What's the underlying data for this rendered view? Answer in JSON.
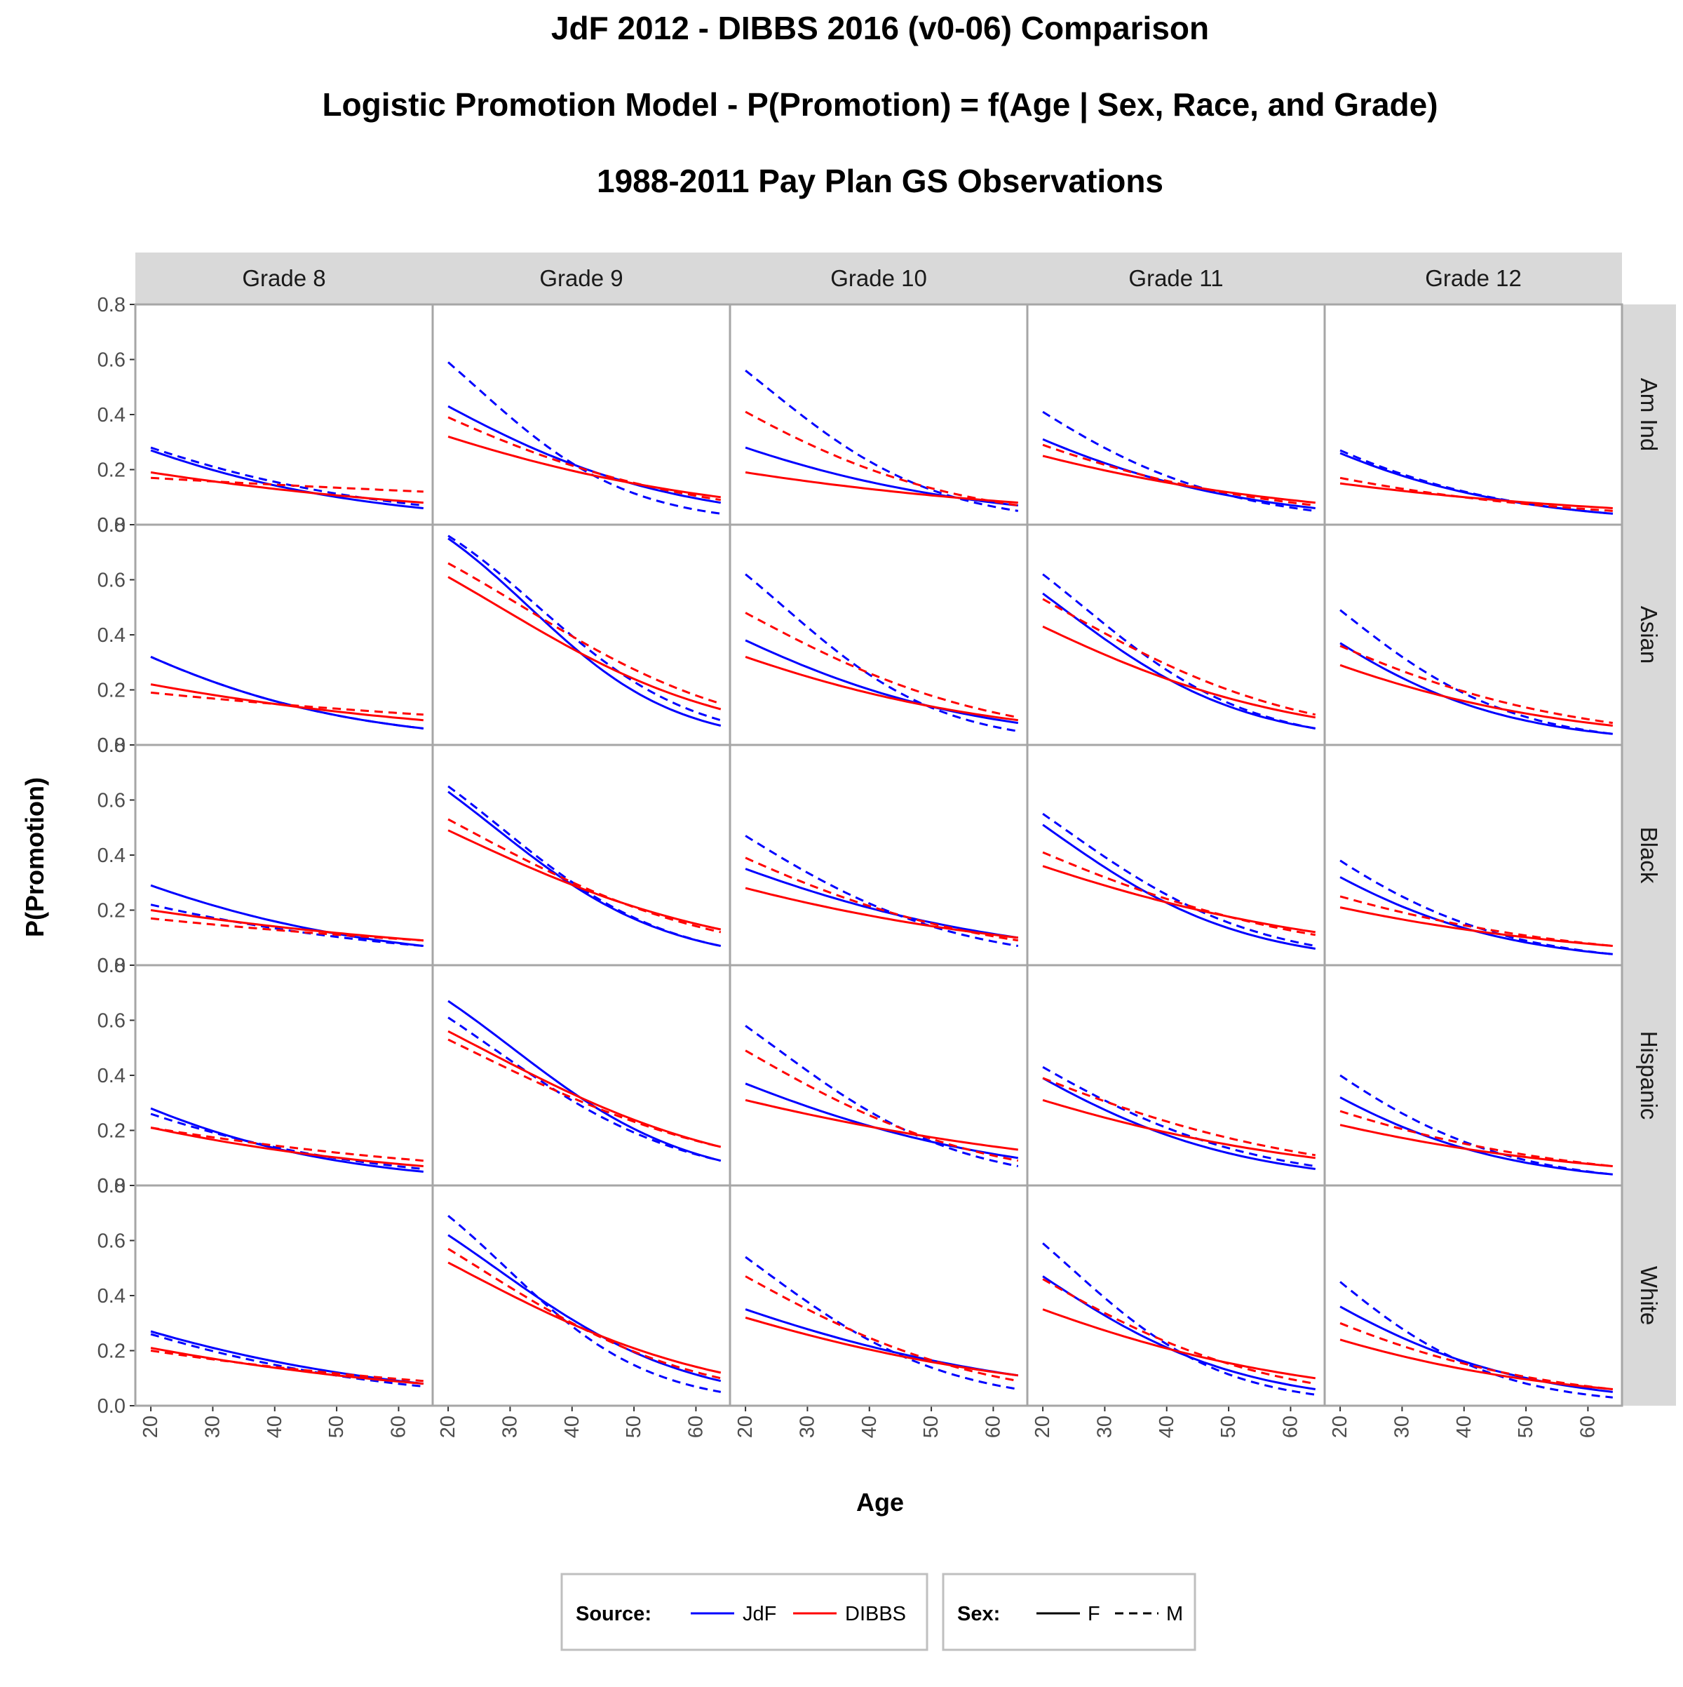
{
  "chart_data": {
    "type": "line",
    "title": [
      "JdF 2012 - DIBBS 2016 (v0-06) Comparison",
      "Logistic Promotion Model  -  P(Promotion) = f(Age | Sex, Race, and Grade)",
      "1988-2011 Pay Plan GS Observations"
    ],
    "xlabel": "Age",
    "ylabel": "P(Promotion)",
    "xlim": [
      17.5,
      65.5
    ],
    "ylim": [
      0,
      0.8
    ],
    "x_ticks": [
      20,
      30,
      40,
      50,
      60
    ],
    "y_ticks": [
      0.0,
      0.2,
      0.4,
      0.6,
      0.8
    ],
    "x_tick_labels": [
      "20",
      "30",
      "40",
      "50",
      "60"
    ],
    "y_tick_labels": [
      "0.0",
      "0.2",
      "0.4",
      "0.6",
      "0.8"
    ],
    "grid": false,
    "columns": [
      "Grade  8",
      "Grade  9",
      "Grade  10",
      "Grade  11",
      "Grade  12"
    ],
    "rows": [
      "Am Ind",
      "Asian",
      "Black",
      "Hispanic",
      "White"
    ],
    "legend": {
      "position": "bottom",
      "source_title": "Source:",
      "source_items": [
        {
          "label": "JdF",
          "color": "#0000ff"
        },
        {
          "label": "DIBBS",
          "color": "#ff0000"
        }
      ],
      "sex_title": "Sex:",
      "sex_items": [
        {
          "label": "F",
          "linetype": "solid"
        },
        {
          "label": "M",
          "linetype": "dashed"
        }
      ]
    },
    "series_note_x": [
      20,
      64
    ],
    "panels": [
      {
        "row": "Am Ind",
        "col": "Grade  8",
        "series": [
          {
            "source": "JdF",
            "sex": "F",
            "values": [
              0.27,
              0.06
            ]
          },
          {
            "source": "JdF",
            "sex": "M",
            "values": [
              0.28,
              0.07
            ]
          },
          {
            "source": "DIBBS",
            "sex": "F",
            "values": [
              0.19,
              0.08
            ]
          },
          {
            "source": "DIBBS",
            "sex": "M",
            "values": [
              0.17,
              0.12
            ]
          }
        ]
      },
      {
        "row": "Am Ind",
        "col": "Grade  9",
        "series": [
          {
            "source": "JdF",
            "sex": "F",
            "values": [
              0.43,
              0.08
            ]
          },
          {
            "source": "JdF",
            "sex": "M",
            "values": [
              0.59,
              0.04
            ]
          },
          {
            "source": "DIBBS",
            "sex": "F",
            "values": [
              0.32,
              0.1
            ]
          },
          {
            "source": "DIBBS",
            "sex": "M",
            "values": [
              0.39,
              0.09
            ]
          }
        ]
      },
      {
        "row": "Am Ind",
        "col": "Grade  10",
        "series": [
          {
            "source": "JdF",
            "sex": "F",
            "values": [
              0.28,
              0.07
            ]
          },
          {
            "source": "JdF",
            "sex": "M",
            "values": [
              0.56,
              0.05
            ]
          },
          {
            "source": "DIBBS",
            "sex": "F",
            "values": [
              0.19,
              0.08
            ]
          },
          {
            "source": "DIBBS",
            "sex": "M",
            "values": [
              0.41,
              0.07
            ]
          }
        ]
      },
      {
        "row": "Am Ind",
        "col": "Grade  11",
        "series": [
          {
            "source": "JdF",
            "sex": "F",
            "values": [
              0.31,
              0.06
            ]
          },
          {
            "source": "JdF",
            "sex": "M",
            "values": [
              0.41,
              0.05
            ]
          },
          {
            "source": "DIBBS",
            "sex": "F",
            "values": [
              0.25,
              0.08
            ]
          },
          {
            "source": "DIBBS",
            "sex": "M",
            "values": [
              0.29,
              0.07
            ]
          }
        ]
      },
      {
        "row": "Am Ind",
        "col": "Grade  12",
        "series": [
          {
            "source": "JdF",
            "sex": "F",
            "values": [
              0.26,
              0.04
            ]
          },
          {
            "source": "JdF",
            "sex": "M",
            "values": [
              0.27,
              0.04
            ]
          },
          {
            "source": "DIBBS",
            "sex": "F",
            "values": [
              0.15,
              0.06
            ]
          },
          {
            "source": "DIBBS",
            "sex": "M",
            "values": [
              0.17,
              0.05
            ]
          }
        ]
      },
      {
        "row": "Asian",
        "col": "Grade  8",
        "series": [
          {
            "source": "JdF",
            "sex": "F",
            "values": [
              0.32,
              0.06
            ]
          },
          {
            "source": "JdF",
            "sex": "M",
            "values": [
              0.32,
              0.06
            ]
          },
          {
            "source": "DIBBS",
            "sex": "F",
            "values": [
              0.22,
              0.09
            ]
          },
          {
            "source": "DIBBS",
            "sex": "M",
            "values": [
              0.19,
              0.11
            ]
          }
        ]
      },
      {
        "row": "Asian",
        "col": "Grade  9",
        "series": [
          {
            "source": "JdF",
            "sex": "F",
            "values": [
              0.75,
              0.07
            ]
          },
          {
            "source": "JdF",
            "sex": "M",
            "values": [
              0.76,
              0.09
            ]
          },
          {
            "source": "DIBBS",
            "sex": "F",
            "values": [
              0.61,
              0.13
            ]
          },
          {
            "source": "DIBBS",
            "sex": "M",
            "values": [
              0.66,
              0.15
            ]
          }
        ]
      },
      {
        "row": "Asian",
        "col": "Grade  10",
        "series": [
          {
            "source": "JdF",
            "sex": "F",
            "values": [
              0.38,
              0.08
            ]
          },
          {
            "source": "JdF",
            "sex": "M",
            "values": [
              0.62,
              0.05
            ]
          },
          {
            "source": "DIBBS",
            "sex": "F",
            "values": [
              0.32,
              0.09
            ]
          },
          {
            "source": "DIBBS",
            "sex": "M",
            "values": [
              0.48,
              0.1
            ]
          }
        ]
      },
      {
        "row": "Asian",
        "col": "Grade  11",
        "series": [
          {
            "source": "JdF",
            "sex": "F",
            "values": [
              0.55,
              0.06
            ]
          },
          {
            "source": "JdF",
            "sex": "M",
            "values": [
              0.62,
              0.06
            ]
          },
          {
            "source": "DIBBS",
            "sex": "F",
            "values": [
              0.43,
              0.1
            ]
          },
          {
            "source": "DIBBS",
            "sex": "M",
            "values": [
              0.53,
              0.11
            ]
          }
        ]
      },
      {
        "row": "Asian",
        "col": "Grade  12",
        "series": [
          {
            "source": "JdF",
            "sex": "F",
            "values": [
              0.37,
              0.04
            ]
          },
          {
            "source": "JdF",
            "sex": "M",
            "values": [
              0.49,
              0.04
            ]
          },
          {
            "source": "DIBBS",
            "sex": "F",
            "values": [
              0.29,
              0.07
            ]
          },
          {
            "source": "DIBBS",
            "sex": "M",
            "values": [
              0.36,
              0.08
            ]
          }
        ]
      },
      {
        "row": "Black",
        "col": "Grade  8",
        "series": [
          {
            "source": "JdF",
            "sex": "F",
            "values": [
              0.29,
              0.07
            ]
          },
          {
            "source": "JdF",
            "sex": "M",
            "values": [
              0.22,
              0.07
            ]
          },
          {
            "source": "DIBBS",
            "sex": "F",
            "values": [
              0.2,
              0.09
            ]
          },
          {
            "source": "DIBBS",
            "sex": "M",
            "values": [
              0.17,
              0.09
            ]
          }
        ]
      },
      {
        "row": "Black",
        "col": "Grade  9",
        "series": [
          {
            "source": "JdF",
            "sex": "F",
            "values": [
              0.63,
              0.07
            ]
          },
          {
            "source": "JdF",
            "sex": "M",
            "values": [
              0.65,
              0.07
            ]
          },
          {
            "source": "DIBBS",
            "sex": "F",
            "values": [
              0.49,
              0.13
            ]
          },
          {
            "source": "DIBBS",
            "sex": "M",
            "values": [
              0.53,
              0.12
            ]
          }
        ]
      },
      {
        "row": "Black",
        "col": "Grade  10",
        "series": [
          {
            "source": "JdF",
            "sex": "F",
            "values": [
              0.35,
              0.1
            ]
          },
          {
            "source": "JdF",
            "sex": "M",
            "values": [
              0.47,
              0.07
            ]
          },
          {
            "source": "DIBBS",
            "sex": "F",
            "values": [
              0.28,
              0.1
            ]
          },
          {
            "source": "DIBBS",
            "sex": "M",
            "values": [
              0.39,
              0.09
            ]
          }
        ]
      },
      {
        "row": "Black",
        "col": "Grade  11",
        "series": [
          {
            "source": "JdF",
            "sex": "F",
            "values": [
              0.51,
              0.06
            ]
          },
          {
            "source": "JdF",
            "sex": "M",
            "values": [
              0.55,
              0.07
            ]
          },
          {
            "source": "DIBBS",
            "sex": "F",
            "values": [
              0.36,
              0.12
            ]
          },
          {
            "source": "DIBBS",
            "sex": "M",
            "values": [
              0.41,
              0.11
            ]
          }
        ]
      },
      {
        "row": "Black",
        "col": "Grade  12",
        "series": [
          {
            "source": "JdF",
            "sex": "F",
            "values": [
              0.32,
              0.04
            ]
          },
          {
            "source": "JdF",
            "sex": "M",
            "values": [
              0.38,
              0.04
            ]
          },
          {
            "source": "DIBBS",
            "sex": "F",
            "values": [
              0.21,
              0.07
            ]
          },
          {
            "source": "DIBBS",
            "sex": "M",
            "values": [
              0.25,
              0.07
            ]
          }
        ]
      },
      {
        "row": "Hispanic",
        "col": "Grade  8",
        "series": [
          {
            "source": "JdF",
            "sex": "F",
            "values": [
              0.28,
              0.05
            ]
          },
          {
            "source": "JdF",
            "sex": "M",
            "values": [
              0.26,
              0.06
            ]
          },
          {
            "source": "DIBBS",
            "sex": "F",
            "values": [
              0.21,
              0.07
            ]
          },
          {
            "source": "DIBBS",
            "sex": "M",
            "values": [
              0.21,
              0.09
            ]
          }
        ]
      },
      {
        "row": "Hispanic",
        "col": "Grade  9",
        "series": [
          {
            "source": "JdF",
            "sex": "F",
            "values": [
              0.67,
              0.09
            ]
          },
          {
            "source": "JdF",
            "sex": "M",
            "values": [
              0.61,
              0.09
            ]
          },
          {
            "source": "DIBBS",
            "sex": "F",
            "values": [
              0.56,
              0.14
            ]
          },
          {
            "source": "DIBBS",
            "sex": "M",
            "values": [
              0.53,
              0.14
            ]
          }
        ]
      },
      {
        "row": "Hispanic",
        "col": "Grade  10",
        "series": [
          {
            "source": "JdF",
            "sex": "F",
            "values": [
              0.37,
              0.1
            ]
          },
          {
            "source": "JdF",
            "sex": "M",
            "values": [
              0.58,
              0.07
            ]
          },
          {
            "source": "DIBBS",
            "sex": "F",
            "values": [
              0.31,
              0.13
            ]
          },
          {
            "source": "DIBBS",
            "sex": "M",
            "values": [
              0.49,
              0.09
            ]
          }
        ]
      },
      {
        "row": "Hispanic",
        "col": "Grade  11",
        "series": [
          {
            "source": "JdF",
            "sex": "F",
            "values": [
              0.39,
              0.06
            ]
          },
          {
            "source": "JdF",
            "sex": "M",
            "values": [
              0.43,
              0.07
            ]
          },
          {
            "source": "DIBBS",
            "sex": "F",
            "values": [
              0.31,
              0.1
            ]
          },
          {
            "source": "DIBBS",
            "sex": "M",
            "values": [
              0.39,
              0.11
            ]
          }
        ]
      },
      {
        "row": "Hispanic",
        "col": "Grade  12",
        "series": [
          {
            "source": "JdF",
            "sex": "F",
            "values": [
              0.32,
              0.04
            ]
          },
          {
            "source": "JdF",
            "sex": "M",
            "values": [
              0.4,
              0.04
            ]
          },
          {
            "source": "DIBBS",
            "sex": "F",
            "values": [
              0.22,
              0.07
            ]
          },
          {
            "source": "DIBBS",
            "sex": "M",
            "values": [
              0.27,
              0.07
            ]
          }
        ]
      },
      {
        "row": "White",
        "col": "Grade  8",
        "series": [
          {
            "source": "JdF",
            "sex": "F",
            "values": [
              0.27,
              0.08
            ]
          },
          {
            "source": "JdF",
            "sex": "M",
            "values": [
              0.26,
              0.07
            ]
          },
          {
            "source": "DIBBS",
            "sex": "F",
            "values": [
              0.21,
              0.08
            ]
          },
          {
            "source": "DIBBS",
            "sex": "M",
            "values": [
              0.2,
              0.09
            ]
          }
        ]
      },
      {
        "row": "White",
        "col": "Grade  9",
        "series": [
          {
            "source": "JdF",
            "sex": "F",
            "values": [
              0.62,
              0.09
            ]
          },
          {
            "source": "JdF",
            "sex": "M",
            "values": [
              0.69,
              0.05
            ]
          },
          {
            "source": "DIBBS",
            "sex": "F",
            "values": [
              0.52,
              0.12
            ]
          },
          {
            "source": "DIBBS",
            "sex": "M",
            "values": [
              0.57,
              0.1
            ]
          }
        ]
      },
      {
        "row": "White",
        "col": "Grade  10",
        "series": [
          {
            "source": "JdF",
            "sex": "F",
            "values": [
              0.35,
              0.11
            ]
          },
          {
            "source": "JdF",
            "sex": "M",
            "values": [
              0.54,
              0.06
            ]
          },
          {
            "source": "DIBBS",
            "sex": "F",
            "values": [
              0.32,
              0.11
            ]
          },
          {
            "source": "DIBBS",
            "sex": "M",
            "values": [
              0.47,
              0.09
            ]
          }
        ]
      },
      {
        "row": "White",
        "col": "Grade  11",
        "series": [
          {
            "source": "JdF",
            "sex": "F",
            "values": [
              0.47,
              0.06
            ]
          },
          {
            "source": "JdF",
            "sex": "M",
            "values": [
              0.59,
              0.04
            ]
          },
          {
            "source": "DIBBS",
            "sex": "F",
            "values": [
              0.35,
              0.1
            ]
          },
          {
            "source": "DIBBS",
            "sex": "M",
            "values": [
              0.46,
              0.08
            ]
          }
        ]
      },
      {
        "row": "White",
        "col": "Grade  12",
        "series": [
          {
            "source": "JdF",
            "sex": "F",
            "values": [
              0.36,
              0.05
            ]
          },
          {
            "source": "JdF",
            "sex": "M",
            "values": [
              0.45,
              0.03
            ]
          },
          {
            "source": "DIBBS",
            "sex": "F",
            "values": [
              0.24,
              0.06
            ]
          },
          {
            "source": "DIBBS",
            "sex": "M",
            "values": [
              0.3,
              0.06
            ]
          }
        ]
      }
    ]
  }
}
